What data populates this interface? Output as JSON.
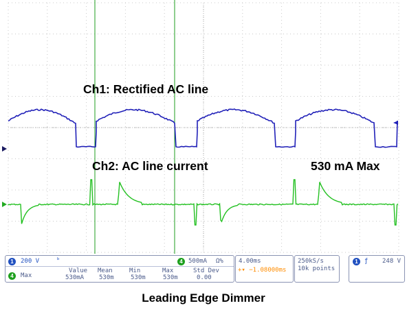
{
  "colors": {
    "ch1": "#2020b8",
    "ch2": "#22c020",
    "cursor": "#1e9e1e",
    "grid": "#c8c8c8",
    "readout_text": "#4a5a8a",
    "trigger_text": "#ff8c00"
  },
  "labels": {
    "ch1": "Ch1: Rectified AC line",
    "ch2": "Ch2: AC line current",
    "max_annotation": "530 mA Max",
    "caption": "Leading Edge Dimmer"
  },
  "readout": {
    "ch1_badge": "1",
    "ch1_scale": "200 V",
    "ch1_coupling_icon": "bandwidth-limit-icon",
    "ch2_badge": "4",
    "ch2_scale": "500mA",
    "ch2_suffix": "Ω%",
    "meas_badge": "4",
    "meas_name": "Max",
    "headers": [
      "Value",
      "Mean",
      "Min",
      "Max",
      "Std Dev"
    ],
    "values": [
      "530mA",
      "530m",
      "530m",
      "530m",
      "0.00"
    ],
    "timebase": "4.00ms",
    "trigger_pos": "+▾ −1.08000ms",
    "sample_rate": "250kS/s",
    "record_length": "10k points",
    "trig_badge": "1",
    "trig_slope_icon": "rising-edge-icon",
    "trig_level": "248 V"
  }
}
